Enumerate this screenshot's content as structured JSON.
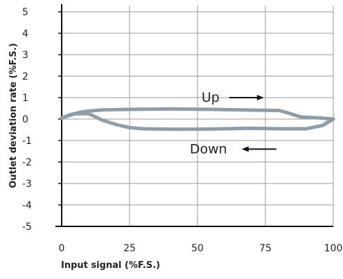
{
  "chart_data": {
    "type": "line",
    "xlabel": "Input signal (%F.S.)",
    "ylabel": "Outlet deviation rate (%F.S.)",
    "xlim": [
      0,
      100
    ],
    "ylim": [
      -5,
      5
    ],
    "x_ticks": [
      0,
      25,
      50,
      75,
      100
    ],
    "y_ticks": [
      5,
      4,
      3,
      2,
      1,
      0,
      -1,
      -2,
      -3,
      -4,
      -5
    ],
    "grid": true,
    "annotations": [
      {
        "text": "Up",
        "direction": "right",
        "x": 52,
        "y": 1.0
      },
      {
        "text": "Down",
        "direction": "left",
        "x": 52,
        "y": -1.4
      }
    ],
    "series": [
      {
        "x": [
          0,
          3,
          8,
          15,
          25,
          40,
          55,
          70,
          80,
          83,
          88,
          95,
          100
        ],
        "y": [
          0.05,
          0.2,
          0.35,
          0.43,
          0.45,
          0.47,
          0.45,
          0.42,
          0.4,
          0.3,
          0.1,
          0.05,
          0.0
        ]
      },
      {
        "x": [
          100,
          96,
          90,
          80,
          70,
          60,
          50,
          40,
          30,
          25,
          20,
          15,
          10,
          5,
          0
        ],
        "y": [
          0.0,
          -0.3,
          -0.45,
          -0.45,
          -0.43,
          -0.45,
          -0.47,
          -0.47,
          -0.45,
          -0.4,
          -0.25,
          -0.05,
          0.25,
          0.25,
          0.05
        ]
      }
    ],
    "color": "#8e9ea8"
  }
}
